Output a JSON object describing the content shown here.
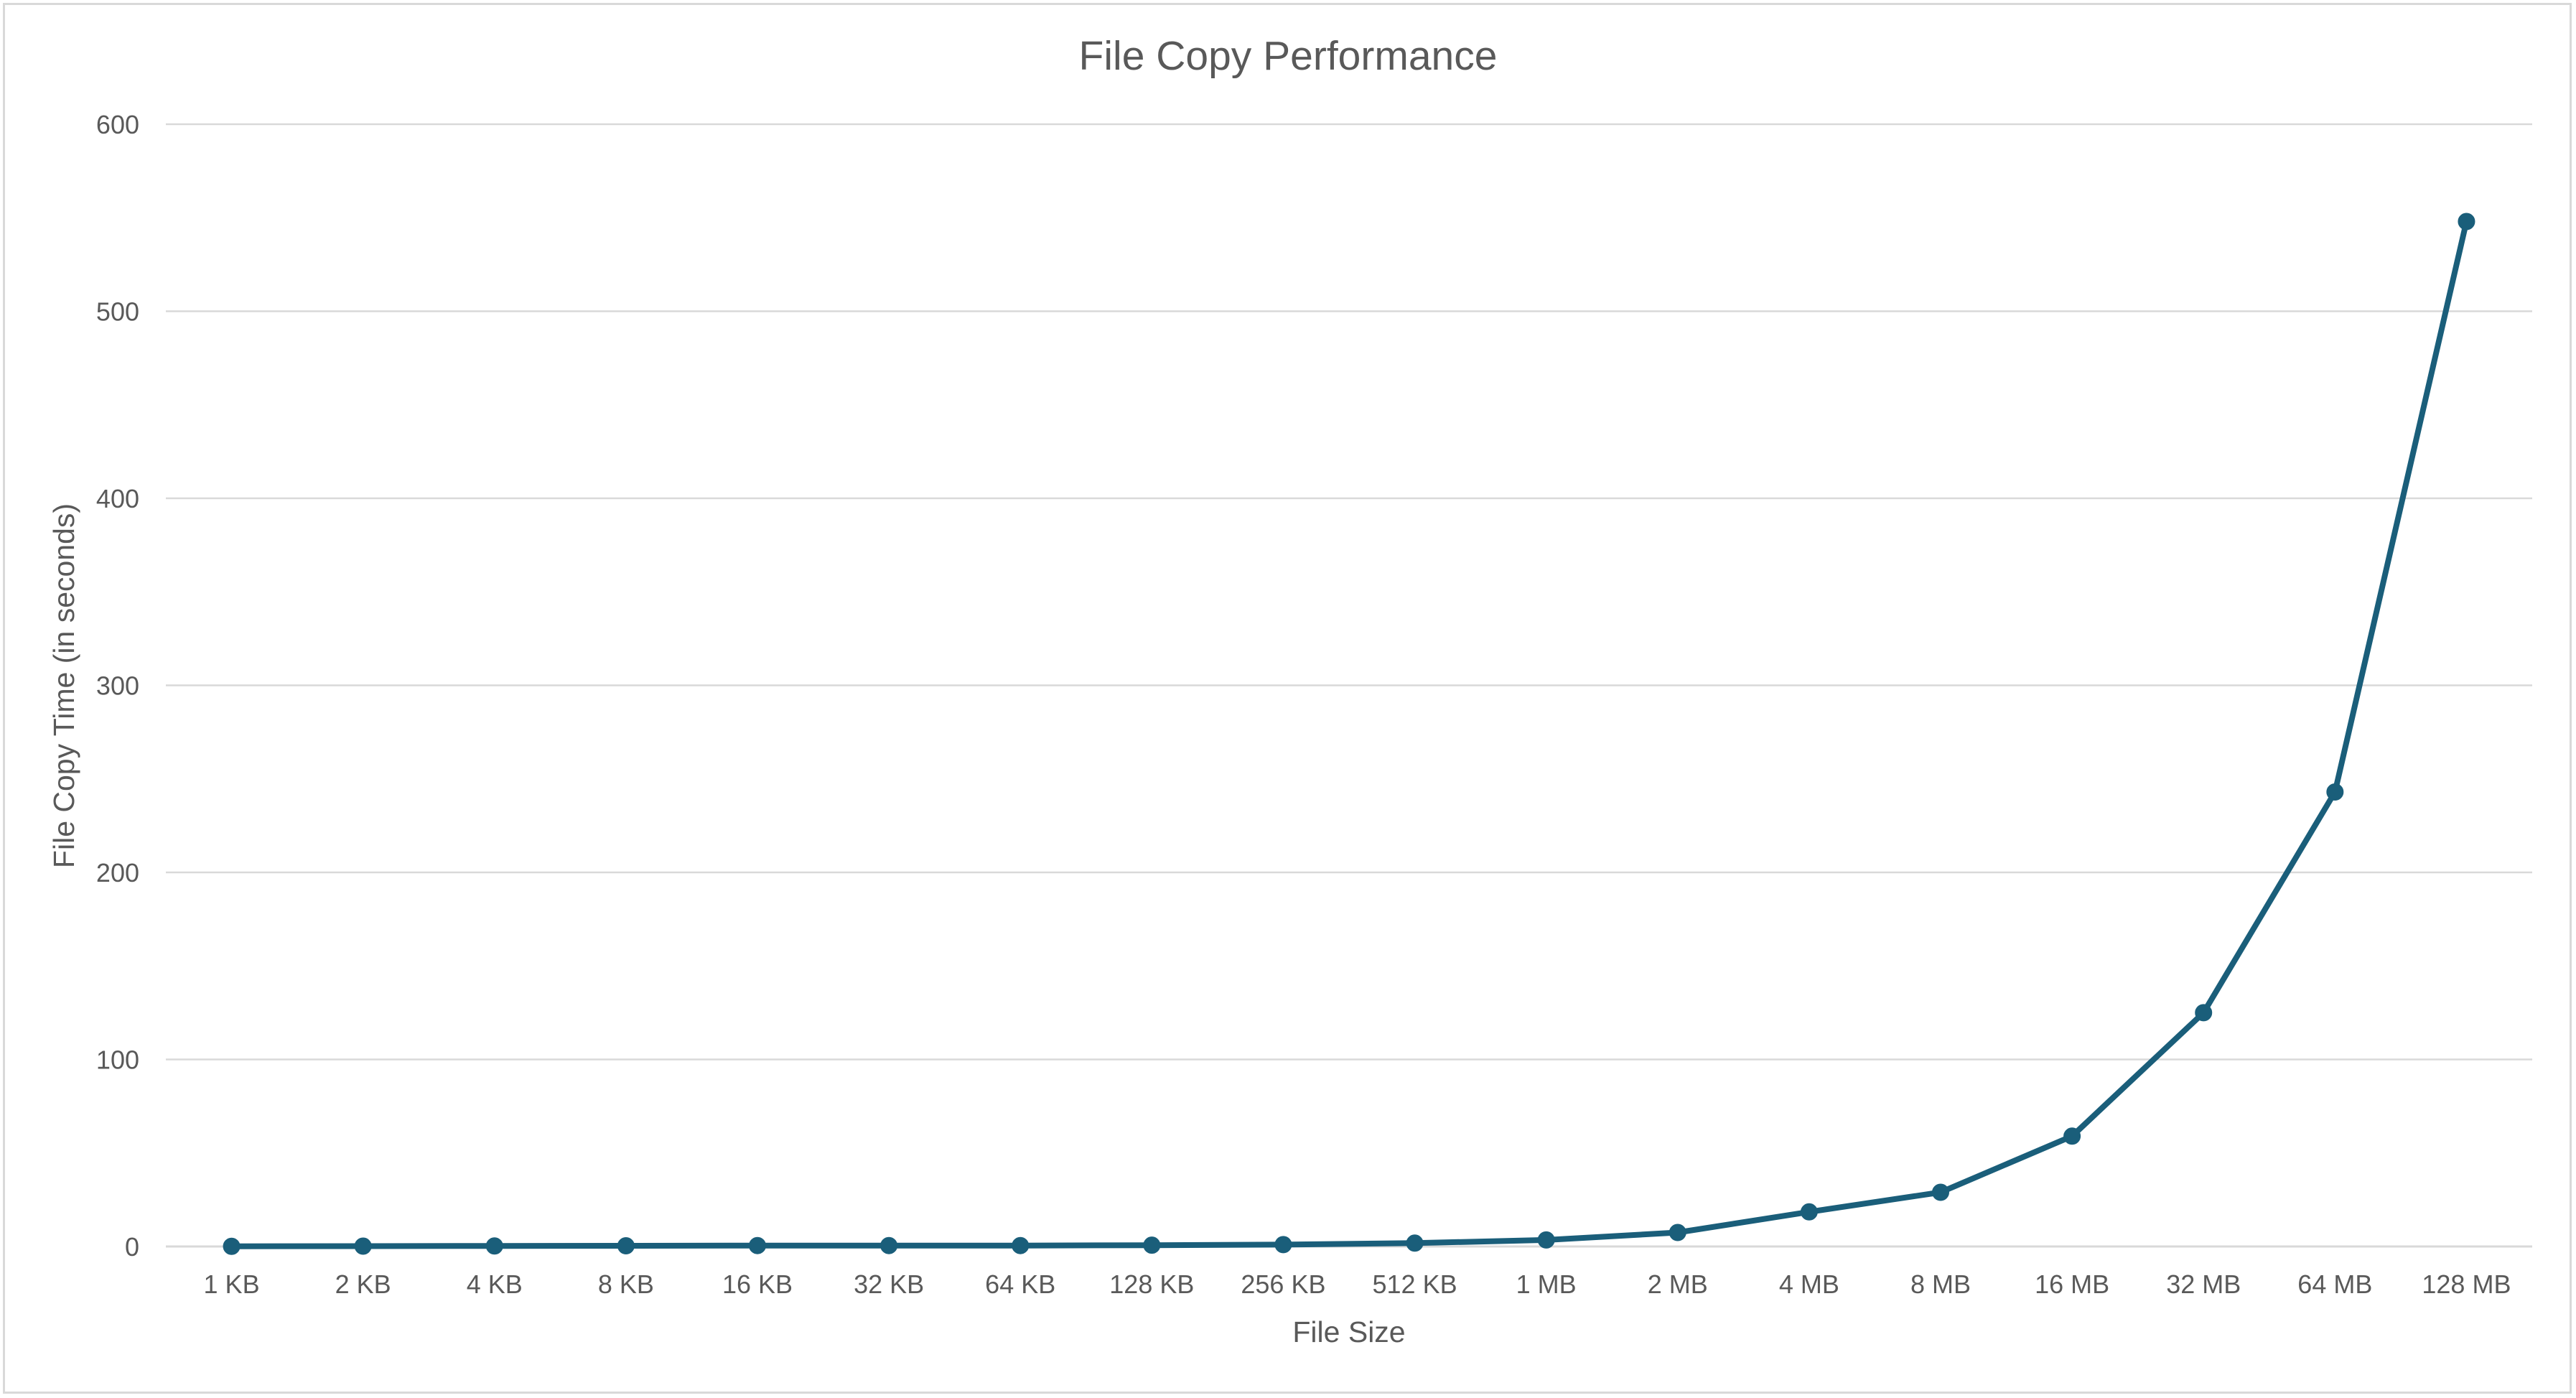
{
  "chart_data": {
    "type": "line",
    "title": "File Copy Performance",
    "xlabel": "File Size",
    "ylabel": "File Copy Time (in seconds)",
    "categories": [
      "1 KB",
      "2 KB",
      "4 KB",
      "8 KB",
      "16 KB",
      "32 KB",
      "64 KB",
      "128 KB",
      "256 KB",
      "512 KB",
      "1 MB",
      "2 MB",
      "4 MB",
      "8 MB",
      "16 MB",
      "32 MB",
      "64 MB",
      "128 MB"
    ],
    "series": [
      {
        "values": [
          0.1,
          0.2,
          0.3,
          0.4,
          0.5,
          0.5,
          0.5,
          0.7,
          1.0,
          1.8,
          3.5,
          7.5,
          18.5,
          29,
          59,
          125,
          243,
          548
        ],
        "color": "#1a5e7a"
      }
    ],
    "ylim": [
      0,
      600
    ],
    "yticks": [
      "0",
      "100",
      "200",
      "300",
      "400",
      "500",
      "600"
    ],
    "grid": true,
    "legend": "none",
    "markers": true
  }
}
